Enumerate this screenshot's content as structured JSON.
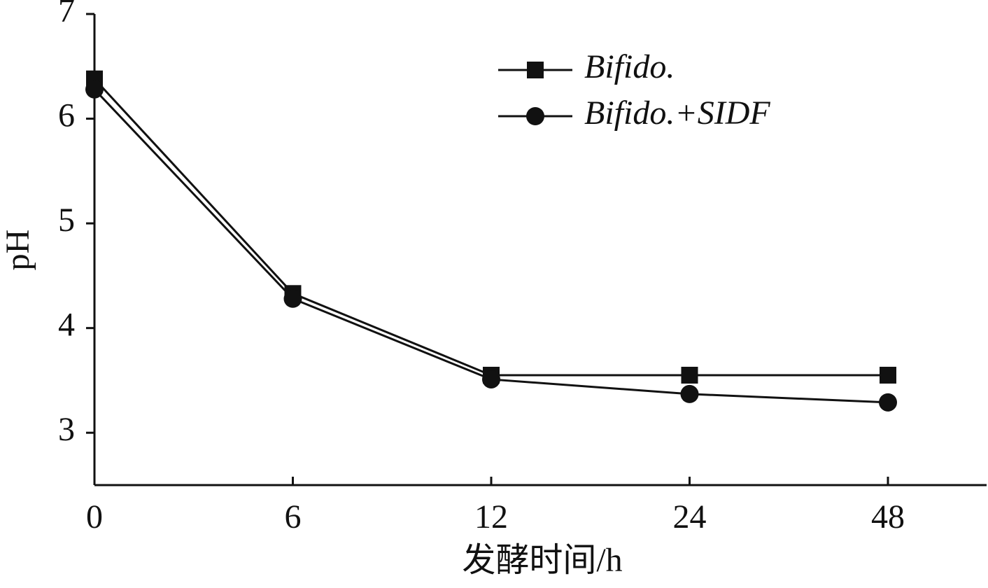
{
  "chart_data": {
    "type": "line",
    "x_label": "发酵时间/h",
    "y_label": "pH",
    "categories": [
      "0",
      "6",
      "12",
      "24",
      "48"
    ],
    "series": [
      {
        "name": "Bifido.",
        "color": "#111111",
        "marker": "square",
        "values": [
          6.38,
          4.33,
          3.55,
          3.55,
          3.55
        ]
      },
      {
        "name": "Bifido.+SIDF",
        "color": "#111111",
        "marker": "circle",
        "values": [
          6.28,
          4.28,
          3.51,
          3.37,
          3.29
        ]
      }
    ],
    "ylim": [
      2.5,
      7
    ],
    "yticks": [
      3,
      4,
      5,
      6,
      7
    ],
    "legend": "upper right"
  }
}
